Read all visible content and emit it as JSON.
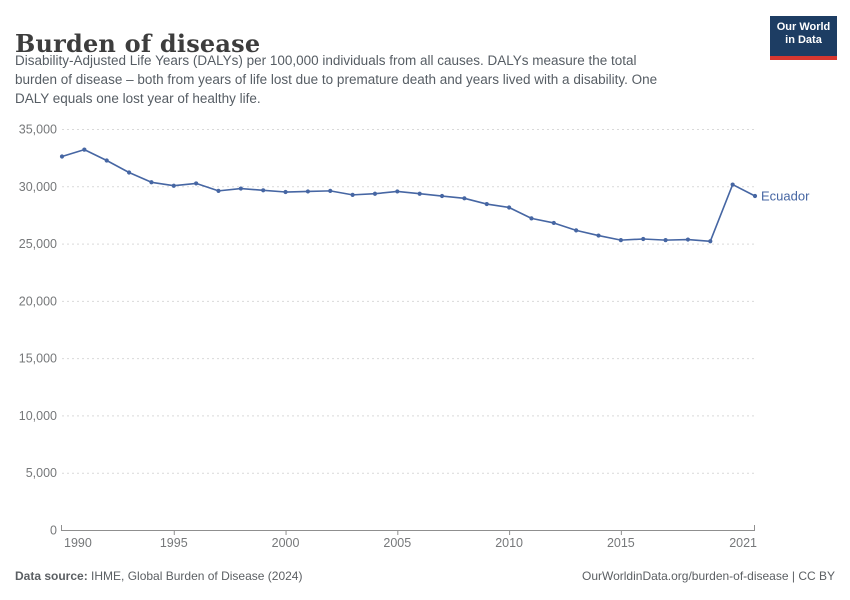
{
  "header": {
    "title": "Burden of disease",
    "subtitle": "Disability-Adjusted Life Years (DALYs) per 100,000 individuals from all causes. DALYs measure the total\nburden of disease – both from years of life lost due to premature death and years lived with a disability. One\nDALY equals one lost year of healthy life.",
    "logo": {
      "line1": "Our World",
      "line2": "in Data",
      "bg_color": "#1d3d63",
      "accent_color": "#d7372f"
    }
  },
  "chart_data": {
    "type": "line",
    "title": "Burden of disease",
    "ylabel": "DALYs per 100,000 individuals",
    "xlim": [
      1990,
      2021
    ],
    "ylim": [
      0,
      35000
    ],
    "grid": "horizontal-dashed",
    "legend_position": "end-of-line-label",
    "x_ticks": [
      1990,
      1995,
      2000,
      2005,
      2010,
      2015,
      2021
    ],
    "y_ticks": [
      0,
      5000,
      10000,
      15000,
      20000,
      25000,
      30000,
      35000
    ],
    "series": [
      {
        "name": "Ecuador",
        "color": "#4666a3",
        "x": [
          1990,
          1991,
          1992,
          1993,
          1994,
          1995,
          1996,
          1997,
          1998,
          1999,
          2000,
          2001,
          2002,
          2003,
          2004,
          2005,
          2006,
          2007,
          2008,
          2009,
          2010,
          2011,
          2012,
          2013,
          2014,
          2015,
          2016,
          2017,
          2018,
          2019,
          2020,
          2021
        ],
        "values": [
          32600,
          33200,
          32250,
          31200,
          30350,
          30050,
          30250,
          29600,
          29800,
          29650,
          29500,
          29550,
          29600,
          29250,
          29350,
          29550,
          29350,
          29150,
          28950,
          28450,
          28150,
          27200,
          26800,
          26150,
          25700,
          25300,
          25400,
          25300,
          25350,
          25200,
          30150,
          29150
        ]
      }
    ]
  },
  "footer": {
    "source_label": "Data source:",
    "source_text": " IHME, Global Burden of Disease (2024)",
    "credit": "OurWorldinData.org/burden-of-disease | CC BY"
  },
  "colors": {
    "grid": "#d9d9d9",
    "axis": "#8f8f8f",
    "tick_text": "#76787a"
  }
}
